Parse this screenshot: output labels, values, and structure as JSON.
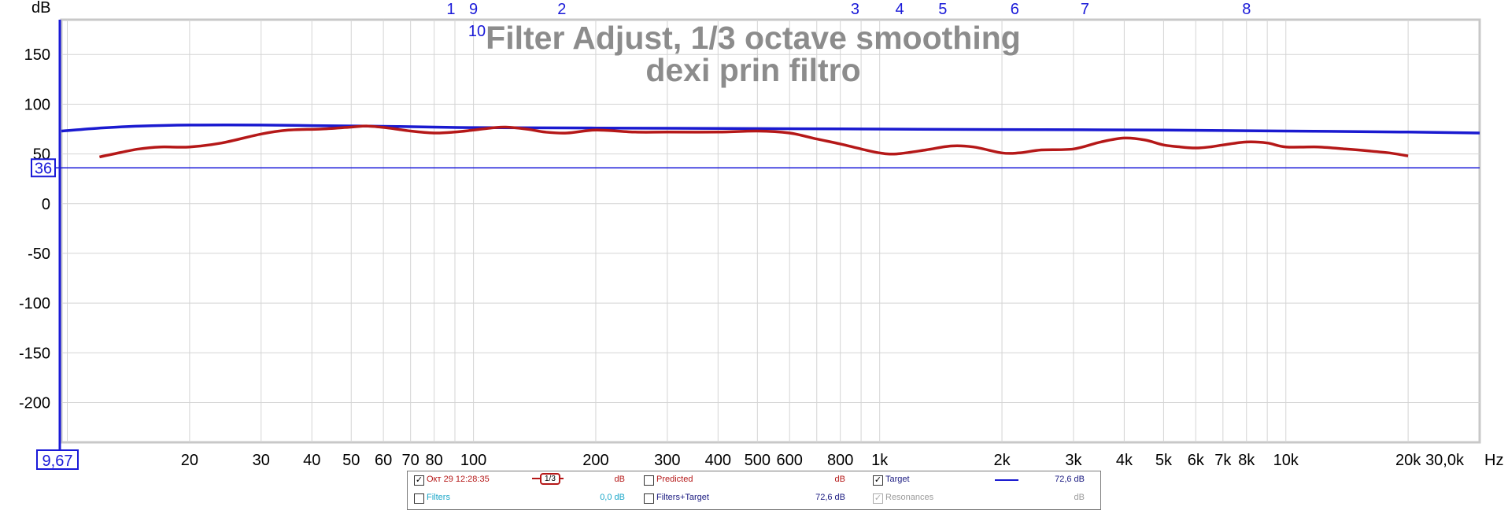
{
  "chart_data": {
    "type": "line",
    "title": "Filter Adjust, 1/3 octave smoothing",
    "subtitle": "dexi prin filtro",
    "ylabel": "dB",
    "xlabel": "Hz",
    "x_scale": "log",
    "xlim": [
      9.67,
      30000
    ],
    "ylim": [
      -240,
      185
    ],
    "grid": true,
    "y_ticks": [
      150,
      100,
      50,
      0,
      -50,
      -100,
      -150,
      -200
    ],
    "y_tick_labels": [
      "150",
      "100",
      "50",
      "0",
      "-50",
      "-100",
      "-150",
      "-200"
    ],
    "x_ticks": [
      20,
      30,
      40,
      50,
      60,
      70,
      80,
      100,
      200,
      300,
      400,
      500,
      600,
      800,
      1000,
      2000,
      3000,
      4000,
      5000,
      6000,
      7000,
      8000,
      10000,
      20000
    ],
    "x_tick_labels": [
      "20",
      "30",
      "40",
      "50",
      "60",
      "70",
      "80",
      "100",
      "200",
      "300",
      "400",
      "500",
      "600",
      "800",
      "1k",
      "2k",
      "3k",
      "4k",
      "5k",
      "6k",
      "7k",
      "8k",
      "10k",
      "20k"
    ],
    "x_start_label": "9,67",
    "x_end_label": "30,0k",
    "cursor": {
      "y": 36,
      "label": "36"
    },
    "filter_markers": [
      {
        "label": "1",
        "freq": 88
      },
      {
        "label": "9",
        "freq": 100
      },
      {
        "label": "10",
        "freq": 102
      },
      {
        "label": "2",
        "freq": 165
      },
      {
        "label": "3",
        "freq": 870
      },
      {
        "label": "4",
        "freq": 1120
      },
      {
        "label": "5",
        "freq": 1430
      },
      {
        "label": "6",
        "freq": 2150
      },
      {
        "label": "7",
        "freq": 3200
      },
      {
        "label": "8",
        "freq": 8000
      }
    ],
    "series": [
      {
        "color": "#1a1ad0",
        "x": [
          9.67,
          12,
          15,
          20,
          30,
          40,
          55,
          80,
          100,
          200,
          500,
          1000,
          2000,
          5000,
          10000,
          20000,
          30000
        ],
        "y": [
          73,
          76,
          78,
          79,
          79,
          78.5,
          78,
          77,
          76.5,
          76,
          75.5,
          75,
          74.5,
          74,
          73,
          72,
          71
        ]
      },
      {
        "color": "#b51818",
        "x": [
          12,
          13,
          15,
          17,
          20,
          24,
          30,
          35,
          42,
          50,
          55,
          62,
          70,
          80,
          90,
          100,
          110,
          120,
          135,
          150,
          170,
          200,
          250,
          300,
          400,
          500,
          600,
          700,
          800,
          900,
          1000,
          1100,
          1300,
          1500,
          1700,
          2000,
          2200,
          2500,
          3000,
          3500,
          4000,
          4500,
          5000,
          5500,
          6000,
          6500,
          7000,
          8000,
          9000,
          10000,
          12000,
          14000,
          16000,
          18000,
          20000
        ],
        "y": [
          47,
          50,
          55,
          57,
          57,
          61,
          70,
          74,
          75,
          77,
          78,
          76,
          73,
          71,
          72,
          74,
          76,
          77,
          75,
          72,
          71,
          74,
          72,
          72,
          72,
          73,
          71,
          65,
          60,
          55,
          51,
          50,
          54,
          58,
          57,
          51,
          51,
          54,
          55,
          62,
          66,
          64,
          59,
          57,
          56,
          57,
          59,
          62,
          61,
          57,
          57,
          55,
          53,
          51,
          48
        ]
      }
    ]
  },
  "legend": {
    "row1": [
      {
        "checked": true,
        "label": "Окт 29 12:28:35",
        "smoothing": "1/3",
        "value": "dB",
        "color": "#b51818"
      },
      {
        "checked": false,
        "label": "Predicted",
        "value": "dB",
        "color": "#b51818"
      },
      {
        "checked": true,
        "label": "Target",
        "value": "72,6 dB",
        "color": "#1a1ad0"
      }
    ],
    "row2": [
      {
        "checked": false,
        "label": "Filters",
        "value": "0,0 dB",
        "color": "#1aa6c8"
      },
      {
        "checked": false,
        "label": "Filters+Target",
        "value": "72,6 dB",
        "color": "#1a1a80"
      },
      {
        "checked": true,
        "disabled": true,
        "label": "Resonances",
        "value": "dB",
        "color": "#9a9a9a"
      }
    ]
  }
}
